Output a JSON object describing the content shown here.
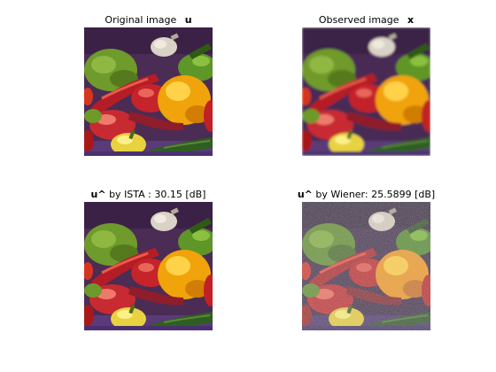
{
  "panels": [
    {
      "title_text": "Original image",
      "title_symbol": "u"
    },
    {
      "title_text": "Observed image",
      "title_symbol": "x"
    },
    {
      "title_symbol": "u",
      "title_hat": "^",
      "title_text": " by ISTA   : 30.15 [dB]"
    },
    {
      "title_symbol": "u",
      "title_hat": "^",
      "title_text": " by Wiener: 25.5899 [dB]"
    }
  ]
}
